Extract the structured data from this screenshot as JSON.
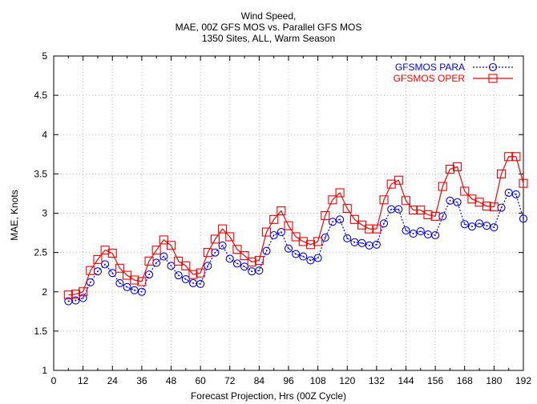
{
  "chart_data": {
    "type": "line",
    "title": [
      "Wind Speed,",
      "MAE, 00Z GFS MOS vs. Parallel GFS MOS",
      "1350 Sites, ALL, Warm Season"
    ],
    "xlabel": "Forecast Projection, Hrs (00Z Cycle)",
    "ylabel": "MAE, Knots",
    "xlim": [
      0,
      192
    ],
    "ylim": [
      1,
      5
    ],
    "xticks": [
      0,
      12,
      24,
      36,
      48,
      60,
      72,
      84,
      96,
      108,
      120,
      132,
      144,
      156,
      168,
      180,
      192
    ],
    "yticks": [
      1,
      1.5,
      2,
      2.5,
      3,
      3.5,
      4,
      4.5,
      5
    ],
    "xtick_labels": [
      "0",
      "12",
      "24",
      "36",
      "48",
      "60",
      "72",
      "84",
      "96",
      "108",
      "120",
      "132",
      "144",
      "156",
      "168",
      "180",
      "192"
    ],
    "ytick_labels": [
      "1",
      "1.5",
      "2",
      "2.5",
      "3",
      "3.5",
      "4",
      "4.5",
      "5"
    ],
    "grid": true,
    "legend_position": "top-right",
    "x": [
      6,
      9,
      12,
      15,
      18,
      21,
      24,
      27,
      30,
      33,
      36,
      39,
      42,
      45,
      48,
      51,
      54,
      57,
      60,
      63,
      66,
      69,
      72,
      75,
      78,
      81,
      84,
      87,
      90,
      93,
      96,
      99,
      102,
      105,
      108,
      111,
      114,
      117,
      120,
      123,
      126,
      129,
      132,
      135,
      138,
      141,
      144,
      147,
      150,
      153,
      156,
      159,
      162,
      165,
      168,
      171,
      174,
      177,
      180,
      183,
      186,
      189,
      192
    ],
    "series": [
      {
        "name": "GFSMOS PARA",
        "color": "#0000ff",
        "line_style": "dotted",
        "marker": "circle",
        "values": [
          1.88,
          1.89,
          1.92,
          2.12,
          2.26,
          2.35,
          2.24,
          2.11,
          2.06,
          2.02,
          2.0,
          2.22,
          2.37,
          2.45,
          2.33,
          2.21,
          2.16,
          2.11,
          2.1,
          2.33,
          2.5,
          2.59,
          2.42,
          2.36,
          2.32,
          2.26,
          2.27,
          2.52,
          2.72,
          2.76,
          2.55,
          2.48,
          2.45,
          2.4,
          2.43,
          2.69,
          2.89,
          2.92,
          2.68,
          2.63,
          2.62,
          2.59,
          2.6,
          2.87,
          3.05,
          3.05,
          2.78,
          2.74,
          2.77,
          2.73,
          2.72,
          2.96,
          3.16,
          3.14,
          2.86,
          2.83,
          2.87,
          2.84,
          2.82,
          3.07,
          3.26,
          3.24,
          2.93
        ]
      },
      {
        "name": "GFSMOS OPER",
        "color": "#ff0000",
        "line_style": "solid",
        "marker": "square",
        "values": [
          1.96,
          1.97,
          2.0,
          2.27,
          2.41,
          2.53,
          2.49,
          2.3,
          2.21,
          2.15,
          2.13,
          2.39,
          2.53,
          2.66,
          2.59,
          2.39,
          2.33,
          2.22,
          2.24,
          2.5,
          2.67,
          2.8,
          2.7,
          2.54,
          2.46,
          2.38,
          2.4,
          2.76,
          2.92,
          3.03,
          2.84,
          2.7,
          2.64,
          2.6,
          2.64,
          2.97,
          3.17,
          3.26,
          3.06,
          2.92,
          2.85,
          2.8,
          2.8,
          3.17,
          3.37,
          3.42,
          3.16,
          3.04,
          3.04,
          2.98,
          2.96,
          3.34,
          3.56,
          3.59,
          3.28,
          3.18,
          3.14,
          3.09,
          3.08,
          3.5,
          3.72,
          3.72,
          3.38
        ]
      }
    ]
  }
}
